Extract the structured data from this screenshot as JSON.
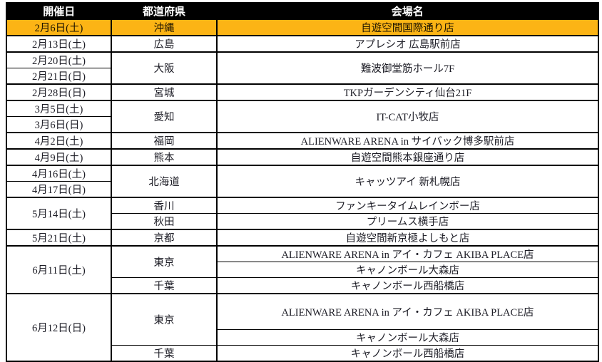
{
  "colors": {
    "header_bg": "#000000",
    "header_text": "#ffffff",
    "highlight_bg": "#FCB415",
    "border": "#000000",
    "body_text": "#1d1d26"
  },
  "header": {
    "date": "開催日",
    "prefecture": "都道府県",
    "venue": "会場名"
  },
  "rows": [
    {
      "date": "2月6日(土)",
      "pref": "沖縄",
      "venue": "自遊空間国際通り店",
      "highlighted": true
    },
    {
      "date": "2月13日(土)",
      "pref": "広島",
      "venue": "アプレシオ 広島駅前店"
    },
    {
      "date": "2月20日(土)",
      "pref": "大阪",
      "venue": "難波御堂筋ホール7F"
    },
    {
      "date": "2月21日(日)"
    },
    {
      "date": "2月28日(日)",
      "pref": "宮城",
      "venue": "TKPガーデンシティ仙台21F"
    },
    {
      "date": "3月5日(土)",
      "pref": "愛知",
      "venue": "IT-CAT小牧店"
    },
    {
      "date": "3月6日(日)"
    },
    {
      "date": "4月2日(土)",
      "pref": "福岡",
      "venue": "ALIENWARE ARENA in サイバック博多駅前店"
    },
    {
      "date": "4月9日(土)",
      "pref": "熊本",
      "venue": "自遊空間熊本銀座通り店"
    },
    {
      "date": "4月16日(土)",
      "pref": "北海道",
      "venue": "キャッツアイ 新札幌店"
    },
    {
      "date": "4月17日(日)"
    },
    {
      "date": "5月14日(土)",
      "pref": "香川",
      "venue": "ファンキータイムレインボー店"
    },
    {
      "pref": "秋田",
      "venue": "プリームス横手店"
    },
    {
      "date": "5月21日(土)",
      "pref": "京都",
      "venue": "自遊空間新京極よしもと店"
    },
    {
      "date": "6月11日(土)",
      "pref": "東京",
      "venue": "ALIENWARE ARENA in アイ・カフェ AKIBA PLACE店"
    },
    {
      "venue": "キャノンボール大森店"
    },
    {
      "pref": "千葉",
      "venue": "キャノンボール西船橋店"
    },
    {
      "date": "6月12日(日)",
      "pref": "東京",
      "venue": "ALIENWARE ARENA in アイ・カフェ AKIBA PLACE店"
    },
    {
      "venue": "キャノンボール大森店"
    },
    {
      "pref": "千葉",
      "venue": "キャノンボール西船橋店"
    }
  ]
}
